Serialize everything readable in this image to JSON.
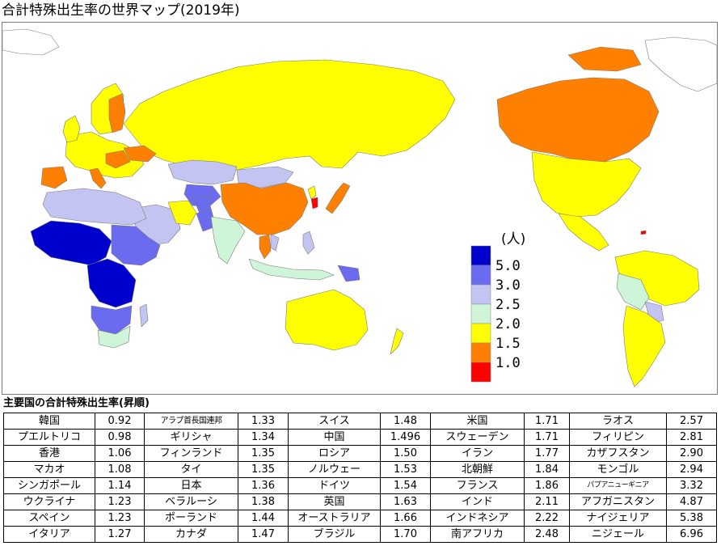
{
  "title": "合計特殊出生率の世界マップ(2019年)",
  "legend": {
    "unit": "(人)",
    "items": [
      {
        "label": "5.0",
        "color": "#0000cc"
      },
      {
        "label": "3.0",
        "color": "#6b6bf0"
      },
      {
        "label": "2.5",
        "color": "#c4c4f2"
      },
      {
        "label": "2.0",
        "color": "#cef5d8"
      },
      {
        "label": "1.5",
        "color": "#ffff00"
      },
      {
        "label": "1.0",
        "color": "#ff8000"
      },
      {
        "label": "",
        "color": "#ff0000"
      }
    ]
  },
  "map_colors": {
    "ocean": "#ffffff",
    "no_data": "#ffffff",
    "border": "#7a7a7a"
  },
  "table": {
    "title": "主要国の合計特殊出生率(昇順)",
    "columns": [
      [
        {
          "country": "韓国",
          "value": "0.92"
        },
        {
          "country": "プエルトリコ",
          "value": "0.98"
        },
        {
          "country": "香港",
          "value": "1.06"
        },
        {
          "country": "マカオ",
          "value": "1.08"
        },
        {
          "country": "シンガポール",
          "value": "1.14"
        },
        {
          "country": "ウクライナ",
          "value": "1.23"
        },
        {
          "country": "スペイン",
          "value": "1.23"
        },
        {
          "country": "イタリア",
          "value": "1.27"
        }
      ],
      [
        {
          "country": "アラブ首長国連邦",
          "value": "1.33"
        },
        {
          "country": "ギリシャ",
          "value": "1.34"
        },
        {
          "country": "フィンランド",
          "value": "1.35"
        },
        {
          "country": "タイ",
          "value": "1.35"
        },
        {
          "country": "日本",
          "value": "1.36"
        },
        {
          "country": "ベラルーシ",
          "value": "1.38"
        },
        {
          "country": "ポーランド",
          "value": "1.44"
        },
        {
          "country": "カナダ",
          "value": "1.47"
        }
      ],
      [
        {
          "country": "スイス",
          "value": "1.48"
        },
        {
          "country": "中国",
          "value": "1.496"
        },
        {
          "country": "ロシア",
          "value": "1.50"
        },
        {
          "country": "ノルウェー",
          "value": "1.53"
        },
        {
          "country": "ドイツ",
          "value": "1.54"
        },
        {
          "country": "英国",
          "value": "1.63"
        },
        {
          "country": "オーストラリア",
          "value": "1.66"
        },
        {
          "country": "ブラジル",
          "value": "1.70"
        }
      ],
      [
        {
          "country": "米国",
          "value": "1.71"
        },
        {
          "country": "スウェーデン",
          "value": "1.71"
        },
        {
          "country": "イラン",
          "value": "1.77"
        },
        {
          "country": "北朝鮮",
          "value": "1.84"
        },
        {
          "country": "フランス",
          "value": "1.86"
        },
        {
          "country": "インド",
          "value": "2.11"
        },
        {
          "country": "インドネシア",
          "value": "2.22"
        },
        {
          "country": "南アフリカ",
          "value": "2.48"
        }
      ],
      [
        {
          "country": "ラオス",
          "value": "2.57"
        },
        {
          "country": "フィリピン",
          "value": "2.81"
        },
        {
          "country": "カザフスタン",
          "value": "2.90"
        },
        {
          "country": "モンゴル",
          "value": "2.94"
        },
        {
          "country": "パプアニューギニア",
          "value": "3.32"
        },
        {
          "country": "アフガニスタン",
          "value": "4.87"
        },
        {
          "country": "ナイジェリア",
          "value": "5.38"
        },
        {
          "country": "ニジェール",
          "value": "6.96"
        }
      ]
    ]
  }
}
